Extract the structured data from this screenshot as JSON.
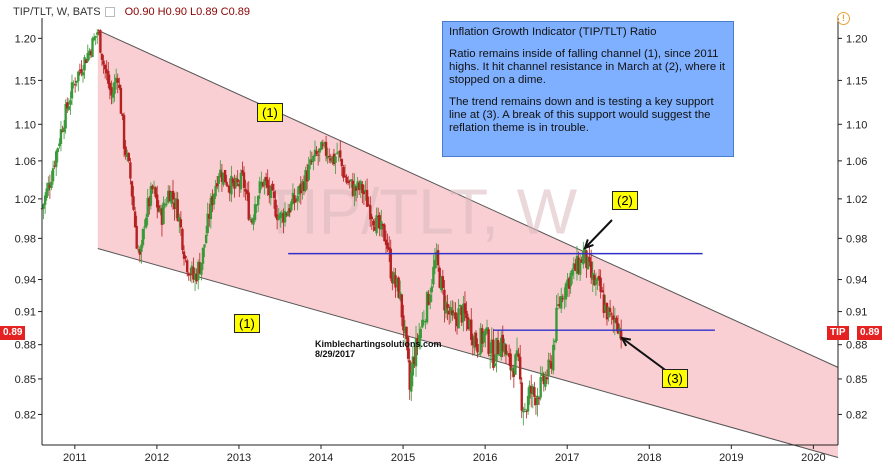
{
  "header": {
    "symbol": "TIP/TLT, W, BATS",
    "ohlc": "O0.90  H0.90  L0.89  C0.89"
  },
  "watermark": "TIP/TLT, W",
  "annotation": {
    "title": "Inflation Growth Indicator (TIP/TLT) Ratio",
    "p1": "Ratio remains inside of falling channel (1), since 2011 highs. It hit channel resistance in March at (2), where it stopped on a dime.",
    "p2": "The trend remains down and is testing a key support line at (3). A break of this support would suggest the reflation theme is in trouble."
  },
  "labels": {
    "channel_top": "(1)",
    "channel_bottom": "(1)",
    "resistance": "(2)",
    "support": "(3)"
  },
  "credit": {
    "site": "Kimblechartingsolutions.com",
    "date": "8/29/2017"
  },
  "price": {
    "left": "0.89",
    "right_symbol": "TIP",
    "right": "0.89"
  },
  "colors": {
    "channel_fill": "#f9cfd3",
    "up_candle": "#3a9a3a",
    "down_candle": "#b52020",
    "horizontal_lines": "#3030c8",
    "price_tag": "#e52222",
    "annotation_box": "#7fb0ff",
    "label_box": "#ffff00"
  },
  "chart_data": {
    "type": "candlestick",
    "xlabel": "",
    "ylabel": "",
    "x_ticks": [
      "2011",
      "2012",
      "2013",
      "2014",
      "2015",
      "2016",
      "2017",
      "2018",
      "2019",
      "2020"
    ],
    "y_ticks": [
      "1.20",
      "1.15",
      "1.10",
      "1.06",
      "1.02",
      "0.98",
      "0.94",
      "0.91",
      "0.88",
      "0.85",
      "0.82"
    ],
    "y_scale": "log",
    "xlim": [
      2010.6,
      2020.3
    ],
    "ylim": [
      0.795,
      1.225
    ],
    "grid": false,
    "ratio_path": [
      [
        2010.6,
        1.01
      ],
      [
        2010.7,
        1.04
      ],
      [
        2010.85,
        1.1
      ],
      [
        2011.0,
        1.15
      ],
      [
        2011.1,
        1.17
      ],
      [
        2011.2,
        1.19
      ],
      [
        2011.28,
        1.21
      ],
      [
        2011.35,
        1.17
      ],
      [
        2011.45,
        1.13
      ],
      [
        2011.52,
        1.16
      ],
      [
        2011.6,
        1.08
      ],
      [
        2011.68,
        1.04
      ],
      [
        2011.75,
        0.98
      ],
      [
        2011.8,
        0.955
      ],
      [
        2011.85,
        1.0
      ],
      [
        2011.95,
        1.03
      ],
      [
        2012.05,
        1.0
      ],
      [
        2012.15,
        1.03
      ],
      [
        2012.25,
        1.01
      ],
      [
        2012.35,
        0.96
      ],
      [
        2012.45,
        0.94
      ],
      [
        2012.55,
        0.96
      ],
      [
        2012.65,
        1.01
      ],
      [
        2012.75,
        1.05
      ],
      [
        2012.85,
        1.04
      ],
      [
        2012.95,
        1.03
      ],
      [
        2013.05,
        1.04
      ],
      [
        2013.15,
        0.995
      ],
      [
        2013.2,
        1.02
      ],
      [
        2013.3,
        1.04
      ],
      [
        2013.4,
        1.02
      ],
      [
        2013.5,
        1.0
      ],
      [
        2013.6,
        1.01
      ],
      [
        2013.7,
        1.02
      ],
      [
        2013.8,
        1.04
      ],
      [
        2013.9,
        1.06
      ],
      [
        2014.0,
        1.07
      ],
      [
        2014.1,
        1.07
      ],
      [
        2014.15,
        1.06
      ],
      [
        2014.2,
        1.07
      ],
      [
        2014.3,
        1.04
      ],
      [
        2014.4,
        1.03
      ],
      [
        2014.5,
        1.03
      ],
      [
        2014.6,
        1.01
      ],
      [
        2014.7,
        0.99
      ],
      [
        2014.8,
        0.98
      ],
      [
        2014.85,
        0.95
      ],
      [
        2014.9,
        0.935
      ],
      [
        2014.95,
        0.93
      ],
      [
        2015.0,
        0.9
      ],
      [
        2015.05,
        0.87
      ],
      [
        2015.08,
        0.84
      ],
      [
        2015.12,
        0.865
      ],
      [
        2015.2,
        0.89
      ],
      [
        2015.3,
        0.92
      ],
      [
        2015.4,
        0.96
      ],
      [
        2015.45,
        0.94
      ],
      [
        2015.5,
        0.92
      ],
      [
        2015.6,
        0.9
      ],
      [
        2015.7,
        0.91
      ],
      [
        2015.8,
        0.9
      ],
      [
        2015.9,
        0.88
      ],
      [
        2016.0,
        0.89
      ],
      [
        2016.1,
        0.87
      ],
      [
        2016.2,
        0.885
      ],
      [
        2016.3,
        0.86
      ],
      [
        2016.4,
        0.865
      ],
      [
        2016.45,
        0.83
      ],
      [
        2016.5,
        0.825
      ],
      [
        2016.55,
        0.84
      ],
      [
        2016.6,
        0.835
      ],
      [
        2016.7,
        0.845
      ],
      [
        2016.8,
        0.86
      ],
      [
        2016.88,
        0.91
      ],
      [
        2016.95,
        0.93
      ],
      [
        2017.05,
        0.945
      ],
      [
        2017.15,
        0.955
      ],
      [
        2017.2,
        0.965
      ],
      [
        2017.3,
        0.94
      ],
      [
        2017.4,
        0.93
      ],
      [
        2017.45,
        0.915
      ],
      [
        2017.55,
        0.9
      ],
      [
        2017.6,
        0.905
      ],
      [
        2017.66,
        0.89
      ]
    ],
    "channel_top": [
      [
        2011.28,
        1.21
      ],
      [
        2020.3,
        0.86
      ]
    ],
    "channel_bottom": [
      [
        2011.28,
        0.97
      ],
      [
        2020.3,
        0.785
      ]
    ],
    "resistance_line": [
      [
        2013.6,
        0.965
      ],
      [
        2018.65,
        0.965
      ]
    ],
    "support_line": [
      [
        2016.1,
        0.893
      ],
      [
        2018.8,
        0.893
      ]
    ],
    "last_close": 0.89
  }
}
